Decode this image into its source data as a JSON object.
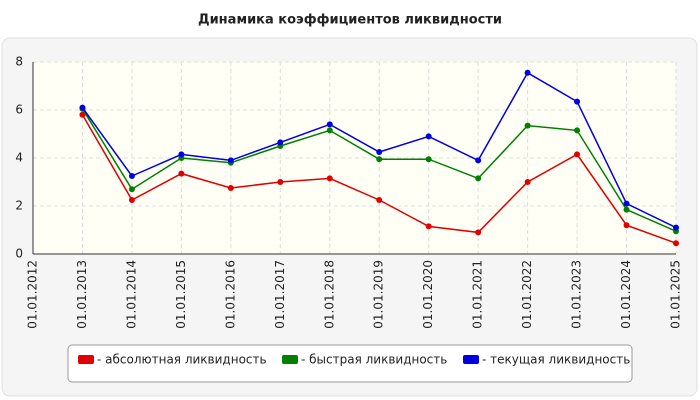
{
  "chart_data": {
    "type": "line",
    "title": "Динамика коэффициентов ликвидности",
    "categories": [
      "01.01.2012",
      "01.01.2013",
      "01.01.2014",
      "01.01.2015",
      "01.01.2016",
      "01.01.2017",
      "01.01.2018",
      "01.01.2019",
      "01.01.2020",
      "01.01.2021",
      "01.01.2022",
      "01.01.2023",
      "01.01.2024",
      "01.01.2025"
    ],
    "series": [
      {
        "name": "- абсолютная ликвидность",
        "color": "#e00000",
        "values": [
          null,
          5.8,
          2.25,
          3.35,
          2.75,
          3.0,
          3.15,
          2.25,
          1.15,
          0.9,
          3.0,
          4.15,
          1.2,
          0.45
        ]
      },
      {
        "name": "- быстрая ликвидность",
        "color": "#008000",
        "values": [
          null,
          6.05,
          2.7,
          4.0,
          3.8,
          4.5,
          5.15,
          3.95,
          3.95,
          3.15,
          5.35,
          5.15,
          1.85,
          0.95
        ]
      },
      {
        "name": "- текущая ликвидность",
        "color": "#0000e0",
        "values": [
          null,
          6.1,
          3.25,
          4.15,
          3.9,
          4.65,
          5.4,
          4.25,
          4.9,
          3.9,
          7.55,
          6.35,
          2.1,
          1.1
        ]
      }
    ],
    "ylim": [
      0,
      8
    ],
    "yticks": [
      0,
      2,
      4,
      6,
      8
    ],
    "grid": true
  }
}
